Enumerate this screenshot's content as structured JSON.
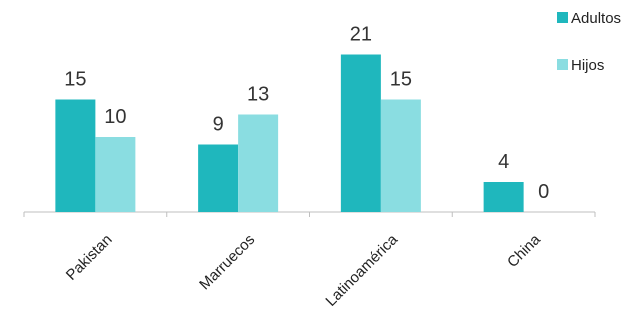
{
  "chart_data": {
    "type": "bar",
    "categories": [
      "Pakistan",
      "Marruecos",
      "Latinoamérica",
      "China"
    ],
    "series": [
      {
        "name": "Adultos",
        "values": [
          15,
          9,
          21,
          4
        ],
        "color": "#1FB7BD"
      },
      {
        "name": "Hijos",
        "values": [
          10,
          13,
          15,
          0
        ],
        "color": "#8ADDE1"
      }
    ],
    "ylim": [
      0,
      25
    ],
    "grid": false,
    "legend_position": "top-right",
    "title": "",
    "xlabel": "",
    "ylabel": ""
  }
}
